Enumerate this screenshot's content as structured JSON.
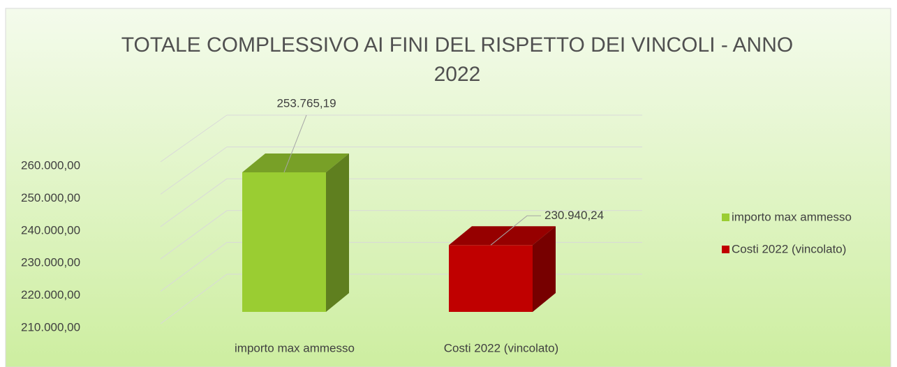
{
  "chart_data": {
    "type": "bar3d",
    "title": "TOTALE COMPLESSIVO AI FINI DEL RISPETTO DEI VINCOLI - ANNO 2022",
    "categories": [
      "importo max ammesso",
      "Costi 2022 (vincolato)"
    ],
    "values": [
      253765.19,
      230940.24
    ],
    "value_labels": [
      "253.765,19",
      "230.940,24"
    ],
    "colors": [
      "#9acd32",
      "#c00000"
    ],
    "ylim": [
      210000,
      260000
    ],
    "yticks": [
      {
        "value": 210000,
        "label": "210.000,00"
      },
      {
        "value": 220000,
        "label": "220.000,00"
      },
      {
        "value": 230000,
        "label": "230.000,00"
      },
      {
        "value": 240000,
        "label": "240.000,00"
      },
      {
        "value": 250000,
        "label": "250.000,00"
      },
      {
        "value": 260000,
        "label": "260.000,00"
      }
    ],
    "grid": true,
    "legend": "right"
  }
}
